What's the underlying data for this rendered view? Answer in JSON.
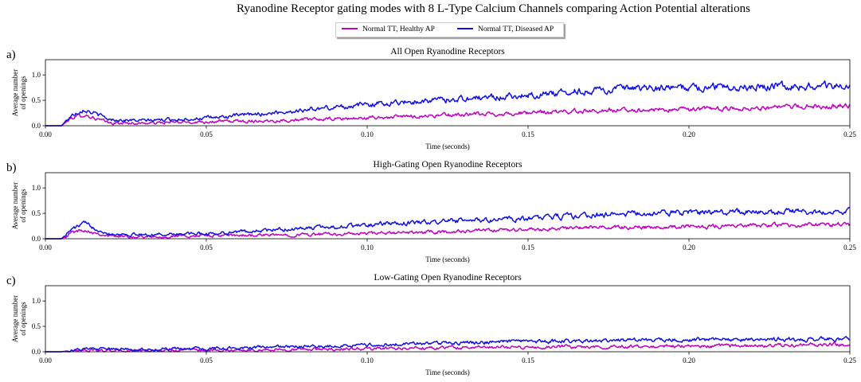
{
  "title": "Ryanodine Receptor gating modes with 8 L-Type Calcium Channels comparing Action Potential alterations",
  "legend": [
    {
      "label": "Normal TT, Healthy AP",
      "color": "#c000c0"
    },
    {
      "label": "Normal TT, Diseased AP",
      "color": "#1010e8"
    }
  ],
  "chart_data": [
    {
      "type": "line",
      "panel_label": "a)",
      "title": "All Open Ryanodine Receptors",
      "xlabel": "Time (seconds)",
      "ylabel": [
        "Average number",
        "of openings"
      ],
      "xlim": [
        0,
        0.25
      ],
      "ylim": [
        0,
        1.3
      ],
      "xticks": [
        "0.00",
        "0.05",
        "0.10",
        "0.15",
        "0.20",
        "0.25"
      ],
      "yticks": [
        "0.0",
        "0.5",
        "1.0"
      ],
      "x": [
        0,
        0.005,
        0.008,
        0.012,
        0.02,
        0.03,
        0.05,
        0.07,
        0.1,
        0.12,
        0.15,
        0.17,
        0.2,
        0.22,
        0.25
      ],
      "series": [
        {
          "name": "Normal TT, Healthy AP",
          "values": [
            0,
            0,
            0.15,
            0.22,
            0.05,
            0.05,
            0.08,
            0.1,
            0.15,
            0.2,
            0.25,
            0.3,
            0.32,
            0.35,
            0.4
          ]
        },
        {
          "name": "Normal TT, Diseased AP",
          "values": [
            0,
            0,
            0.2,
            0.33,
            0.12,
            0.1,
            0.15,
            0.25,
            0.42,
            0.5,
            0.6,
            0.7,
            0.75,
            0.78,
            0.78
          ]
        }
      ]
    },
    {
      "type": "line",
      "panel_label": "b)",
      "title": "High-Gating Open Ryanodine Receptors",
      "xlabel": "Time (seconds)",
      "ylabel": [
        "Average number",
        "of openings"
      ],
      "xlim": [
        0,
        0.25
      ],
      "ylim": [
        0,
        1.3
      ],
      "xticks": [
        "0.00",
        "0.05",
        "0.10",
        "0.15",
        "0.20",
        "0.25"
      ],
      "yticks": [
        "0.0",
        "0.5",
        "1.0"
      ],
      "x": [
        0,
        0.005,
        0.008,
        0.012,
        0.02,
        0.03,
        0.05,
        0.07,
        0.1,
        0.12,
        0.15,
        0.17,
        0.2,
        0.22,
        0.25
      ],
      "series": [
        {
          "name": "Normal TT, Healthy AP",
          "values": [
            0,
            0,
            0.12,
            0.18,
            0.05,
            0.04,
            0.06,
            0.07,
            0.1,
            0.13,
            0.18,
            0.22,
            0.24,
            0.26,
            0.28
          ]
        },
        {
          "name": "Normal TT, Diseased AP",
          "values": [
            0,
            0,
            0.18,
            0.3,
            0.1,
            0.08,
            0.1,
            0.17,
            0.27,
            0.33,
            0.4,
            0.47,
            0.52,
            0.52,
            0.55
          ]
        }
      ]
    },
    {
      "type": "line",
      "panel_label": "c)",
      "title": "Low-Gating Open Ryanodine Receptors",
      "xlabel": "Time (seconds)",
      "ylabel": [
        "Average number",
        "of openings"
      ],
      "xlim": [
        0,
        0.25
      ],
      "ylim": [
        0,
        1.3
      ],
      "xticks": [
        "0.00",
        "0.05",
        "0.10",
        "0.15",
        "0.20",
        "0.25"
      ],
      "yticks": [
        "0.0",
        "0.5",
        "1.0"
      ],
      "x": [
        0,
        0.005,
        0.008,
        0.012,
        0.02,
        0.03,
        0.05,
        0.07,
        0.1,
        0.12,
        0.15,
        0.17,
        0.2,
        0.22,
        0.25
      ],
      "series": [
        {
          "name": "Normal TT, Healthy AP",
          "values": [
            0,
            0,
            0.02,
            0.03,
            0.02,
            0.02,
            0.03,
            0.04,
            0.06,
            0.08,
            0.09,
            0.1,
            0.11,
            0.12,
            0.15
          ]
        },
        {
          "name": "Normal TT, Diseased AP",
          "values": [
            0,
            0,
            0.03,
            0.05,
            0.05,
            0.05,
            0.06,
            0.09,
            0.13,
            0.17,
            0.2,
            0.22,
            0.24,
            0.24,
            0.25
          ]
        }
      ]
    }
  ]
}
